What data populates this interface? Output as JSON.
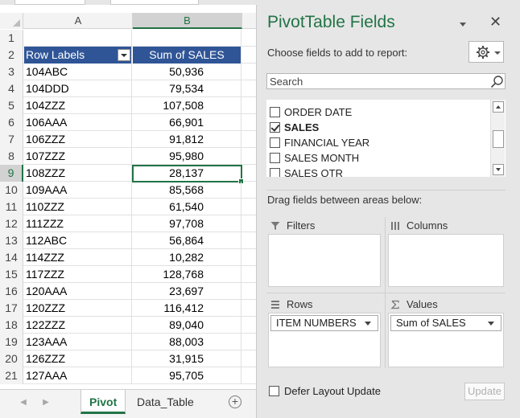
{
  "sheet": {
    "columns": [
      "A",
      "B"
    ],
    "active_column": "B",
    "active_row": "9",
    "rows": [
      {
        "num": "1",
        "a": "",
        "b": ""
      },
      {
        "num": "2",
        "a": "Row Labels",
        "b": "Sum of SALES",
        "header": true
      },
      {
        "num": "3",
        "a": "104ABC",
        "b": "50,936"
      },
      {
        "num": "4",
        "a": "104DDD",
        "b": "79,534"
      },
      {
        "num": "5",
        "a": "104ZZZ",
        "b": "107,508"
      },
      {
        "num": "6",
        "a": "106AAA",
        "b": "66,901"
      },
      {
        "num": "7",
        "a": "106ZZZ",
        "b": "91,812"
      },
      {
        "num": "8",
        "a": "107ZZZ",
        "b": "95,980"
      },
      {
        "num": "9",
        "a": "108ZZZ",
        "b": "28,137"
      },
      {
        "num": "10",
        "a": "109AAA",
        "b": "85,568"
      },
      {
        "num": "11",
        "a": "110ZZZ",
        "b": "61,540"
      },
      {
        "num": "12",
        "a": "111ZZZ",
        "b": "97,708"
      },
      {
        "num": "13",
        "a": "112ABC",
        "b": "56,864"
      },
      {
        "num": "14",
        "a": "114ZZZ",
        "b": "10,282"
      },
      {
        "num": "15",
        "a": "117ZZZ",
        "b": "128,768"
      },
      {
        "num": "16",
        "a": "120AAA",
        "b": "23,697"
      },
      {
        "num": "17",
        "a": "120ZZZ",
        "b": "116,412"
      },
      {
        "num": "18",
        "a": "122ZZZ",
        "b": "89,040"
      },
      {
        "num": "19",
        "a": "123AAA",
        "b": "88,003"
      },
      {
        "num": "20",
        "a": "126ZZZ",
        "b": "31,915"
      },
      {
        "num": "21",
        "a": "127AAA",
        "b": "95,705"
      }
    ],
    "tabs": [
      {
        "label": "Pivot",
        "active": true
      },
      {
        "label": "Data_Table",
        "active": false
      }
    ],
    "add_sheet_symbol": "+"
  },
  "pane": {
    "title": "PivotTable Fields",
    "close_symbol": "✕",
    "choose_label": "Choose fields to add to report:",
    "search_placeholder": "Search",
    "fields": [
      {
        "label": "ORDER DATE",
        "checked": false
      },
      {
        "label": "SALES",
        "checked": true
      },
      {
        "label": "FINANCIAL YEAR",
        "checked": false
      },
      {
        "label": "SALES MONTH",
        "checked": false
      },
      {
        "label": "SALES QTR",
        "checked": false
      }
    ],
    "drag_label": "Drag fields between areas below:",
    "areas": {
      "filters": {
        "label": "Filters",
        "items": []
      },
      "columns": {
        "label": "Columns",
        "items": []
      },
      "rows": {
        "label": "Rows",
        "items": [
          "ITEM NUMBERS"
        ]
      },
      "values": {
        "label": "Values",
        "items": [
          "Sum of SALES"
        ]
      }
    },
    "defer_label": "Defer Layout Update",
    "update_label": "Update"
  },
  "colors": {
    "excel_green": "#217346",
    "header_blue": "#2f5597"
  }
}
